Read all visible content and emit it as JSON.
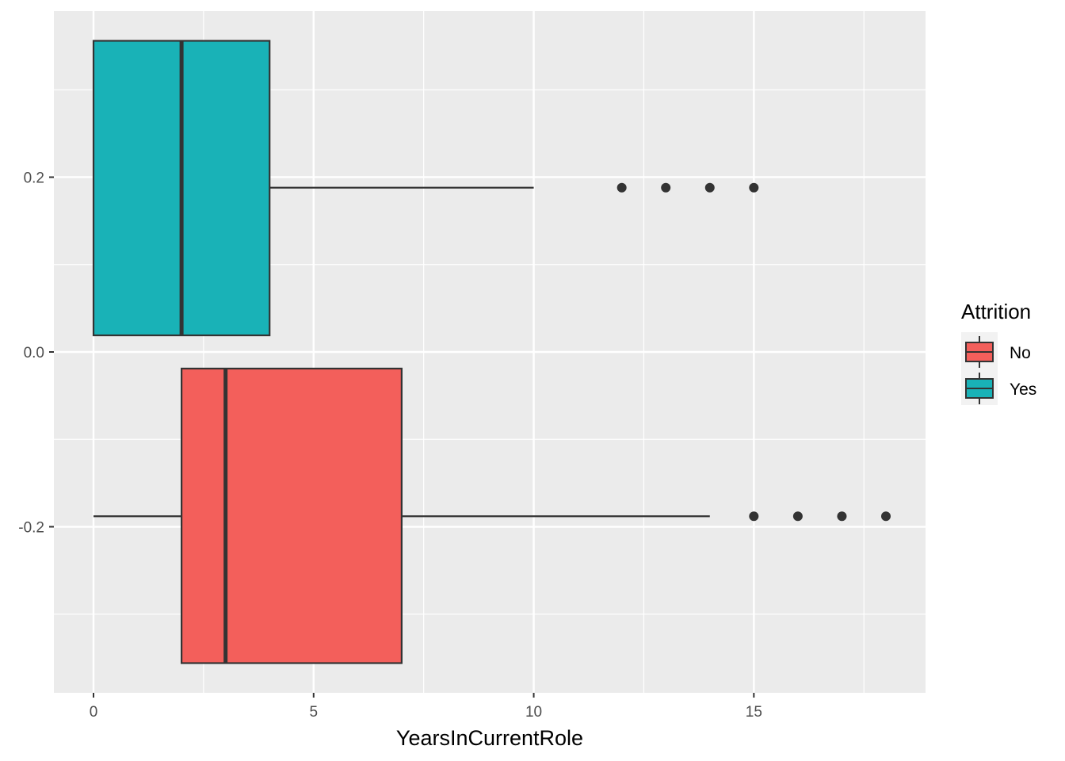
{
  "chart_data": {
    "type": "boxplot",
    "orientation": "horizontal",
    "title": "",
    "xlabel": "YearsInCurrentRole",
    "ylabel": "",
    "xlim": [
      -0.9,
      18.9
    ],
    "ylim": [
      -0.39,
      0.39
    ],
    "x_ticks": [
      0,
      5,
      10,
      15
    ],
    "x_tick_labels": [
      "0",
      "5",
      "10",
      "15"
    ],
    "y_ticks": [
      -0.2,
      0.0,
      0.2
    ],
    "y_tick_labels": [
      "-0.2",
      "0.0",
      "0.2"
    ],
    "grid": true,
    "legend": {
      "title": "Attrition",
      "position": "right",
      "entries": [
        "No",
        "Yes"
      ]
    },
    "series": [
      {
        "name": "No",
        "color": "#F8766D",
        "fill": "#F35F5B",
        "ymin": -0.356,
        "ymax": -0.019,
        "ycenter": -0.188,
        "whisker_low": 0,
        "q1": 2,
        "median": 3,
        "q3": 7,
        "whisker_high": 14,
        "outliers": [
          15,
          16,
          17,
          18
        ]
      },
      {
        "name": "Yes",
        "color": "#00BFC4",
        "fill": "#19B2B7",
        "ymin": 0.019,
        "ymax": 0.356,
        "ycenter": 0.188,
        "whisker_low": 0,
        "q1": 0,
        "median": 2,
        "q3": 4,
        "whisker_high": 10,
        "outliers": [
          12,
          13,
          14,
          15
        ]
      }
    ]
  }
}
